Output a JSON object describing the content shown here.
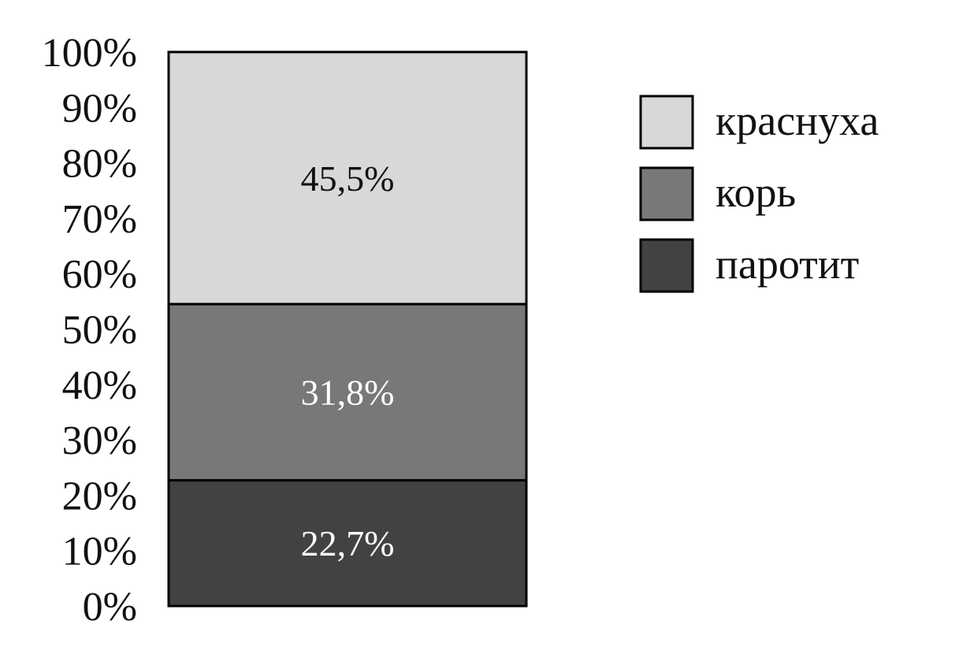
{
  "chart_data": {
    "type": "bar",
    "stacked": true,
    "categories": [
      ""
    ],
    "series": [
      {
        "name": "паротит",
        "values": [
          22.7
        ],
        "label": "22,7%",
        "color": "#424242",
        "label_color": "#ffffff"
      },
      {
        "name": "корь",
        "values": [
          31.8
        ],
        "label": "31,8%",
        "color": "#7a7778",
        "label_color": "#ffffff"
      },
      {
        "name": "краснуха",
        "values": [
          45.5
        ],
        "label": "45,5%",
        "color": "#d8d8d8",
        "label_color": "#111111"
      }
    ],
    "legend_order": [
      "краснуха",
      "корь",
      "паротит"
    ],
    "y_ticks": [
      "0%",
      "10%",
      "20%",
      "30%",
      "40%",
      "50%",
      "60%",
      "70%",
      "80%",
      "90%",
      "100%"
    ],
    "ylim": [
      0,
      100
    ],
    "grid": false,
    "legend_position": "top-right"
  }
}
